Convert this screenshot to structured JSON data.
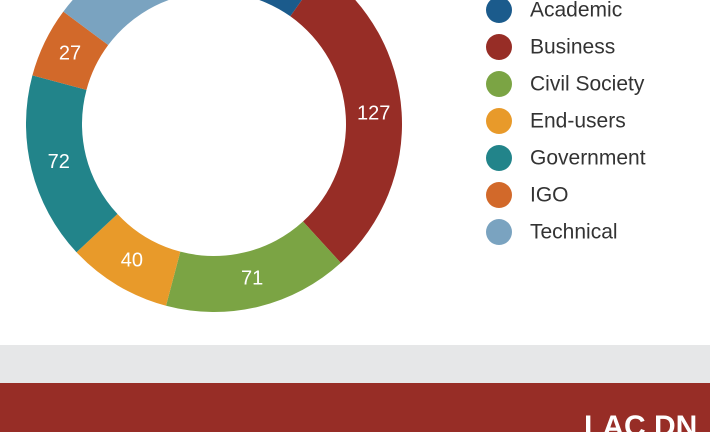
{
  "chart_data": {
    "type": "donut",
    "categories": [
      "Academic",
      "Business",
      "Civil Society",
      "End-users",
      "Government",
      "IGO",
      "Technical"
    ],
    "values": [
      60,
      127,
      71,
      40,
      72,
      27,
      50
    ],
    "colors": [
      "#1b5b8c",
      "#972d26",
      "#7ba444",
      "#e89a2a",
      "#22848a",
      "#d2692a",
      "#7aa3c0"
    ]
  },
  "footer": {
    "title": "LAC DN"
  }
}
